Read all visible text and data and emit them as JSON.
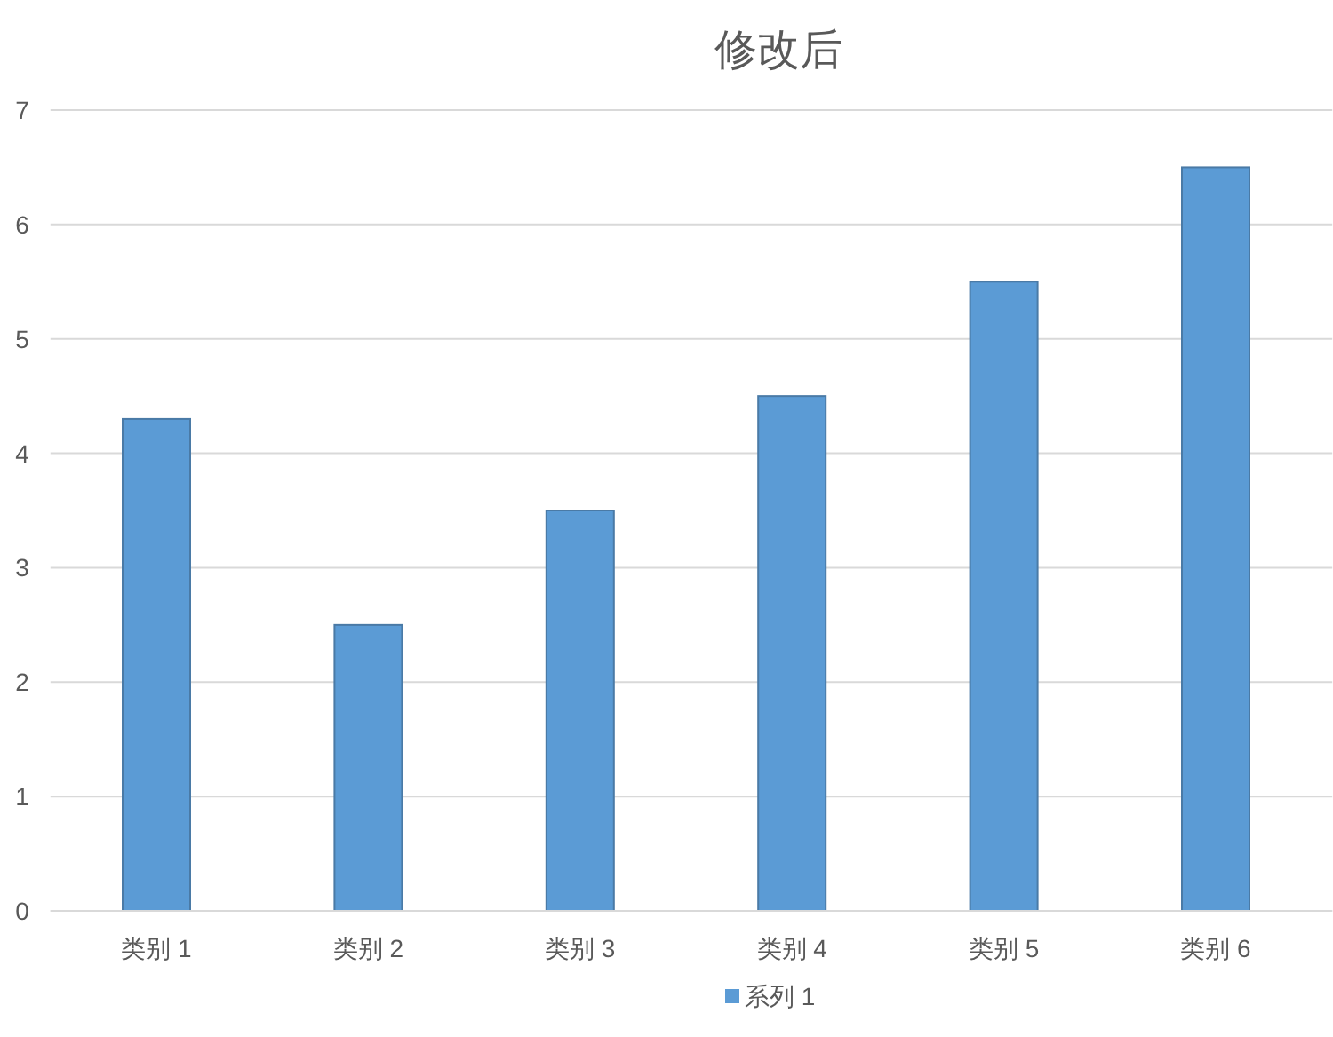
{
  "chart_data": {
    "type": "bar",
    "title": "修改后",
    "categories": [
      "类别 1",
      "类别 2",
      "类别 3",
      "类别 4",
      "类别 5",
      "类别 6"
    ],
    "series": [
      {
        "name": "系列 1",
        "color": "#5b9bd5",
        "values": [
          4.3,
          2.5,
          3.5,
          4.5,
          5.5,
          6.5
        ]
      }
    ],
    "ylim": [
      0,
      7
    ],
    "yticks": [
      0,
      1,
      2,
      3,
      4,
      5,
      6,
      7
    ],
    "grid": "y",
    "legend": "bottom"
  }
}
